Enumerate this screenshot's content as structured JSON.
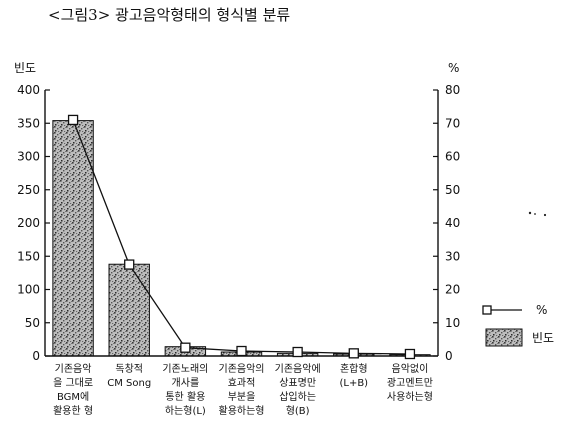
{
  "chart_data": {
    "type": "bar",
    "title": "<그림3> 광고음악형태의 형식별 분류",
    "ylabel_left": "빈도",
    "ylabel_right": "%",
    "ylim_left": [
      0,
      400
    ],
    "ylim_right": [
      0,
      80
    ],
    "yticks_left": [
      "0",
      "50",
      "100",
      "150",
      "200",
      "250",
      "300",
      "350",
      "400"
    ],
    "yticks_right": [
      "0",
      "10",
      "20",
      "30",
      "40",
      "50",
      "60",
      "70",
      "80"
    ],
    "categories": [
      [
        "기존음악",
        "을 그대로",
        "BGM에",
        "활용한 형"
      ],
      [
        "독창적",
        "CM Song"
      ],
      [
        "기존노래의",
        "개사를",
        "통한 활용",
        "하는형(L)"
      ],
      [
        "기존음악의",
        "효과적",
        "부분을",
        "활용하는형"
      ],
      [
        "기존음악에",
        "상표명만",
        "삽입하는",
        "형(B)"
      ],
      [
        "혼합형",
        "(L+B)"
      ],
      [
        "음악없이",
        "광고멘트만",
        "사용하는형"
      ]
    ],
    "series": [
      {
        "name": "빈도",
        "kind": "bar",
        "axis": "left",
        "values": [
          354,
          138,
          14,
          6,
          4,
          3,
          2
        ]
      },
      {
        "name": "%",
        "kind": "line",
        "axis": "right",
        "values": [
          71,
          27.5,
          2.5,
          1.5,
          1.2,
          0.8,
          0.6
        ]
      }
    ],
    "legend": {
      "position": "right",
      "entries": [
        {
          "label": "%",
          "symbol": "line-square"
        },
        {
          "label": "빈도",
          "symbol": "stipple-box"
        }
      ]
    },
    "grid": false,
    "colors": {
      "bar_fill": "#9a9a9a",
      "ink": "#111111",
      "paper": "#ffffff"
    }
  }
}
